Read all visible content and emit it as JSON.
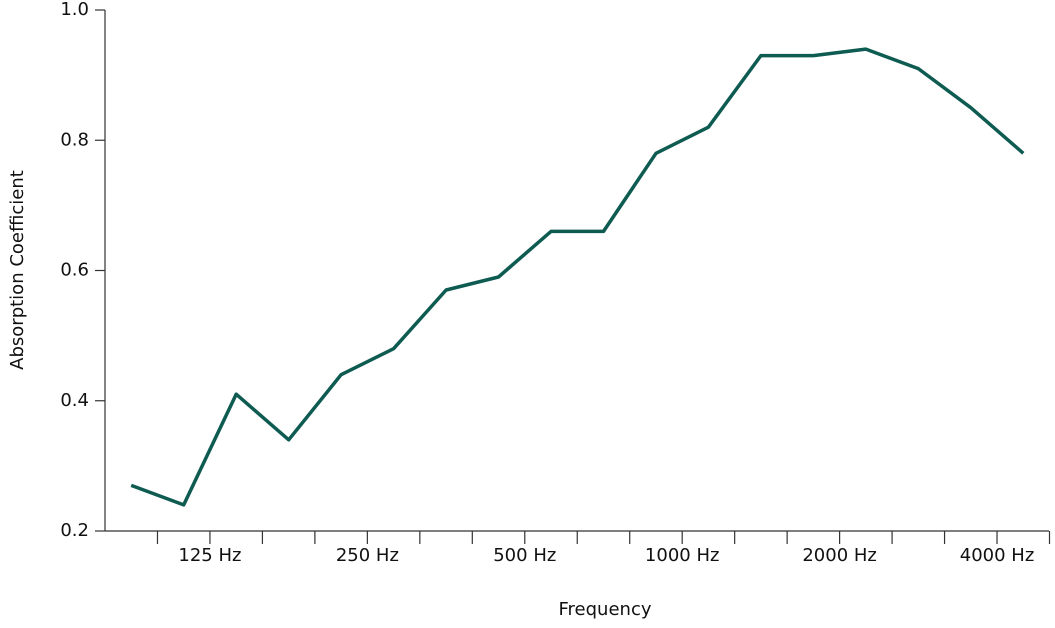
{
  "chart_data": {
    "type": "line",
    "xlabel": "Frequency",
    "ylabel": "Absorption Coefficient",
    "categories": [
      null,
      "125 Hz",
      null,
      null,
      "250 Hz",
      null,
      null,
      "500 Hz",
      null,
      null,
      "1000 Hz",
      null,
      null,
      "2000 Hz",
      null,
      null,
      "4000 Hz",
      null
    ],
    "series": [
      {
        "color": "#0e5b52",
        "values": [
          0.27,
          0.24,
          0.41,
          0.34,
          0.44,
          0.48,
          0.57,
          0.59,
          0.66,
          0.66,
          0.78,
          0.82,
          0.93,
          0.93,
          0.94,
          0.91,
          0.85,
          0.78
        ]
      }
    ],
    "ylim": [
      0.2,
      1.0
    ],
    "yticks": [
      0.2,
      0.4,
      0.6,
      0.8,
      {
        "value": 1.0,
        "label": "1.0"
      }
    ],
    "grid": false
  }
}
